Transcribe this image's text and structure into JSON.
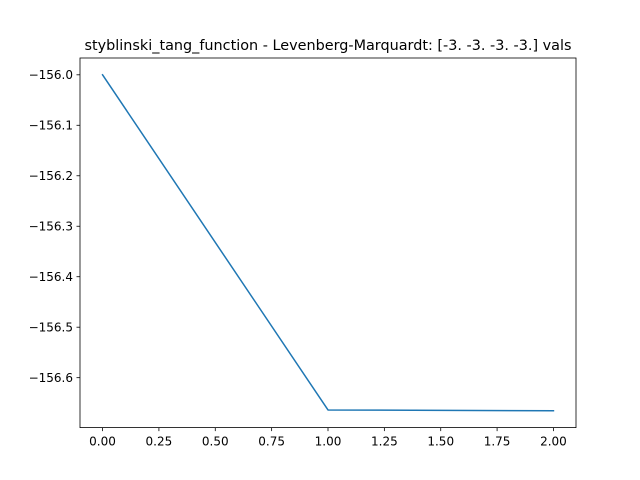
{
  "chart_data": {
    "type": "line",
    "title": "styblinski_tang_function - Levenberg-Marquardt: [-3. -3. -3. -3.] vals",
    "xlabel": "",
    "ylabel": "",
    "x": [
      0,
      1,
      2
    ],
    "series": [
      {
        "values": [
          -156.0,
          -156.664,
          -156.6656
        ],
        "color": "#1f77b4"
      }
    ],
    "xlim": [
      -0.1,
      2.1
    ],
    "ylim": [
      -156.6989,
      -155.9667
    ],
    "xticks": [
      0.0,
      0.25,
      0.5,
      0.75,
      1.0,
      1.25,
      1.5,
      1.75,
      2.0
    ],
    "xtick_labels": [
      "0.00",
      "0.25",
      "0.50",
      "0.75",
      "1.00",
      "1.25",
      "1.50",
      "1.75",
      "2.00"
    ],
    "yticks": [
      -156.0,
      -156.1,
      -156.2,
      -156.3,
      -156.4,
      -156.5,
      -156.6
    ],
    "ytick_labels": [
      "−156.0",
      "−156.1",
      "−156.2",
      "−156.3",
      "−156.4",
      "−156.5",
      "−156.6"
    ],
    "grid": false,
    "legend": "none"
  }
}
